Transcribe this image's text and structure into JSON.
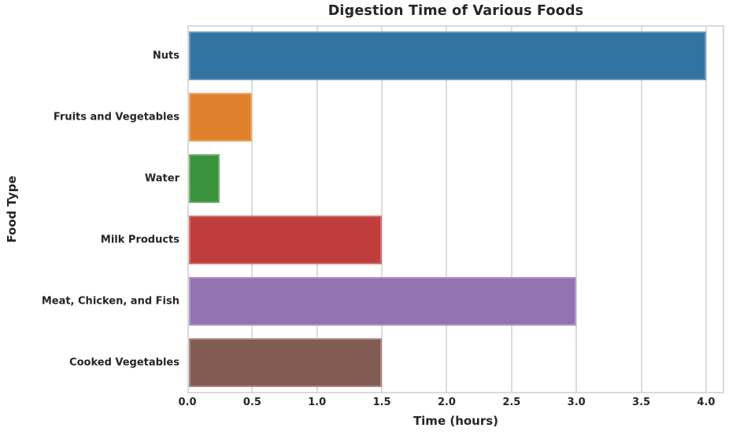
{
  "chart_data": {
    "type": "bar",
    "orientation": "horizontal",
    "title": "Digestion Time of Various Foods",
    "xlabel": "Time (hours)",
    "ylabel": "Food Type",
    "categories": [
      "Nuts",
      "Fruits and Vegetables",
      "Water",
      "Milk Products",
      "Meat, Chicken, and Fish",
      "Cooked Vegetables"
    ],
    "values": [
      4.0,
      0.5,
      0.25,
      1.5,
      3.0,
      1.5
    ],
    "bar_colors": [
      "#3274a1",
      "#e1812c",
      "#3a923a",
      "#c03d3e",
      "#9372b2",
      "#845b53"
    ],
    "xlim": [
      0,
      4.14
    ],
    "xticks": [
      0.0,
      0.5,
      1.0,
      1.5,
      2.0,
      2.5,
      3.0,
      3.5,
      4.0
    ],
    "xtick_labels": [
      "0.0",
      "0.5",
      "1.0",
      "1.5",
      "2.0",
      "2.5",
      "3.0",
      "3.5",
      "4.0"
    ],
    "grid": "vertical-only",
    "legend": "none"
  },
  "colors": {
    "background": "#ffffff",
    "grid": "#dcdcdc",
    "spine": "#d9d9d9",
    "text": "#262626"
  }
}
